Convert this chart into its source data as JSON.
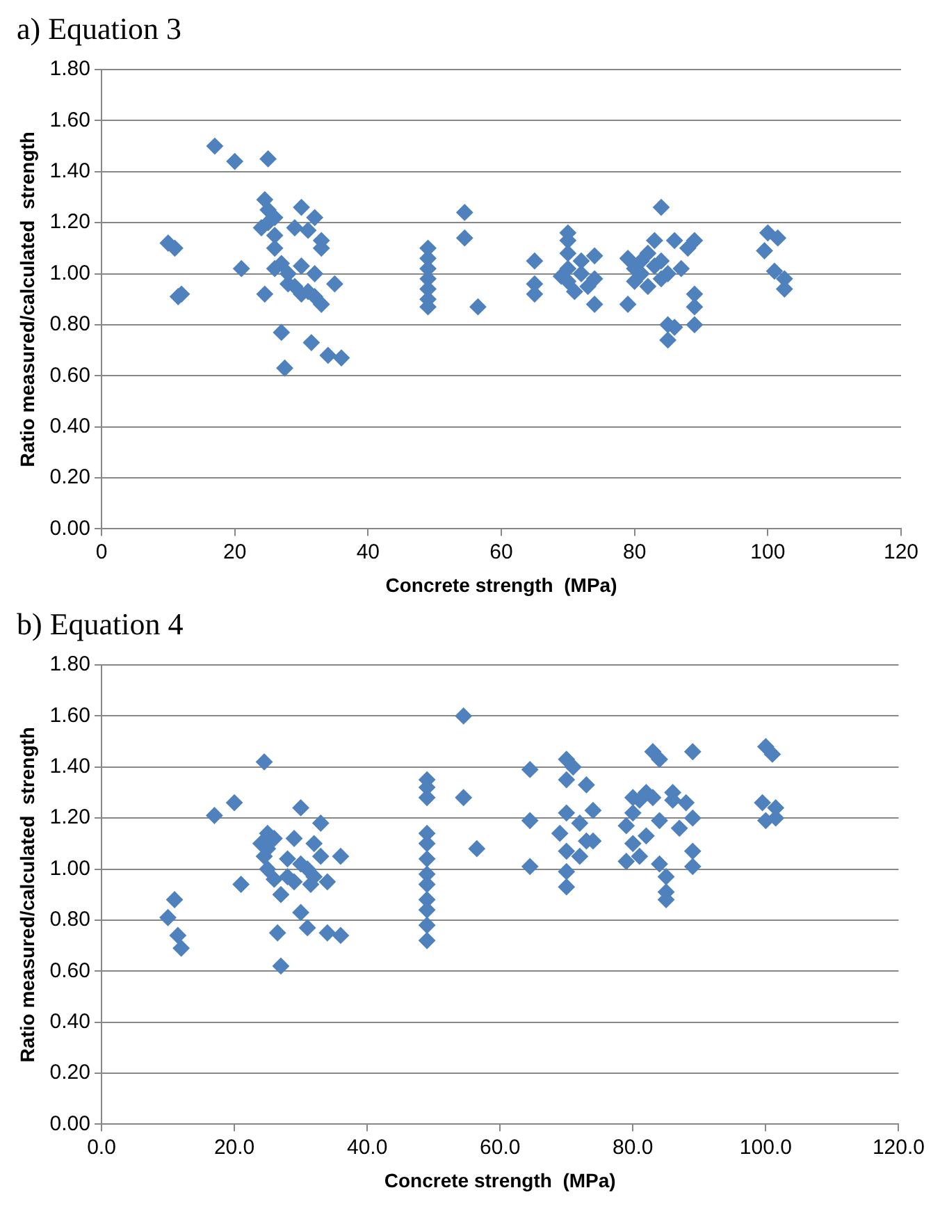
{
  "chart_data": [
    {
      "type": "scatter",
      "title": "a) Equation 3",
      "xlabel": "Concrete strength  (MPa)",
      "ylabel": "Ratio measured/calculated  strength",
      "marker": "diamond",
      "grid": "y",
      "legend": false,
      "xlim": [
        0,
        120
      ],
      "xticks": [
        0,
        20,
        40,
        60,
        80,
        100,
        120
      ],
      "ylim": [
        0,
        1.8
      ],
      "yticks": [
        {
          "value": 0,
          "label": "0.00"
        },
        {
          "value": 0.2,
          "label": "0.20"
        },
        {
          "value": 0.4,
          "label": "0.40"
        },
        {
          "value": 0.6,
          "label": "0.60"
        },
        {
          "value": 0.8,
          "label": "0.80"
        },
        {
          "value": 1,
          "label": "1.00"
        },
        {
          "value": 1.2,
          "label": "1.20"
        },
        {
          "value": 1.4,
          "label": "1.40"
        },
        {
          "value": 1.6,
          "label": "1.60"
        },
        {
          "value": 1.8,
          "label": "1.80"
        }
      ],
      "series": [
        {
          "color": "#4f81bd",
          "x": [
            10,
            11,
            11.5,
            12,
            17,
            20,
            21,
            24,
            24.5,
            24.5,
            25,
            25,
            25,
            26,
            26,
            26,
            26,
            27,
            27,
            27.5,
            28,
            28,
            29,
            29,
            30,
            30,
            30,
            31,
            31,
            31.5,
            32,
            32,
            32,
            33,
            33,
            33,
            34,
            35,
            36,
            49,
            49,
            49,
            49,
            49,
            49,
            49,
            54.5,
            54.5,
            56.5,
            65,
            65,
            65,
            69,
            70,
            70,
            70,
            70,
            70,
            71,
            72,
            72,
            73,
            74,
            74,
            74,
            79,
            79,
            80,
            80,
            81,
            81,
            82,
            82,
            83,
            83,
            84,
            84,
            84,
            85,
            85,
            85,
            86,
            86,
            87,
            88,
            89,
            89,
            89,
            89,
            99.5,
            100,
            101,
            101.5,
            102.5,
            102.5
          ],
          "values": [
            1.12,
            1.1,
            0.91,
            0.92,
            1.5,
            1.44,
            1.02,
            1.18,
            1.29,
            0.92,
            1.45,
            1.25,
            1.2,
            1.15,
            1.22,
            1.1,
            1.02,
            0.77,
            1.04,
            0.63,
            0.96,
            1.0,
            0.95,
            1.18,
            1.03,
            0.92,
            1.26,
            1.17,
            0.93,
            0.73,
            1.22,
            1.0,
            0.91,
            1.1,
            0.88,
            1.13,
            0.68,
            0.96,
            0.67,
            1.1,
            1.06,
            1.02,
            0.98,
            0.94,
            0.9,
            0.87,
            1.24,
            1.14,
            0.87,
            1.05,
            0.96,
            0.92,
            0.99,
            1.16,
            1.13,
            1.08,
            1.02,
            0.97,
            0.93,
            1.05,
            1.0,
            0.95,
            1.07,
            0.88,
            0.98,
            1.06,
            0.88,
            1.02,
            0.97,
            1.05,
            1.0,
            0.95,
            1.08,
            1.03,
            1.13,
            1.26,
            1.05,
            0.98,
            0.8,
            0.74,
            1.0,
            1.13,
            0.79,
            1.02,
            1.1,
            1.13,
            0.92,
            0.87,
            0.8,
            1.09,
            1.16,
            1.01,
            1.14,
            0.98,
            0.94
          ]
        }
      ]
    },
    {
      "type": "scatter",
      "title": "b) Equation 4",
      "xlabel": "Concrete strength  (MPa)",
      "ylabel": "Ratio measured/calculated  strength",
      "marker": "diamond",
      "grid": "y",
      "legend": false,
      "xlim": [
        0,
        120
      ],
      "xticks": [
        {
          "value": 0,
          "label": "0.0"
        },
        {
          "value": 20,
          "label": "20.0"
        },
        {
          "value": 40,
          "label": "40.0"
        },
        {
          "value": 60,
          "label": "60.0"
        },
        {
          "value": 80,
          "label": "80.0"
        },
        {
          "value": 100,
          "label": "100.0"
        },
        {
          "value": 120,
          "label": "120.0"
        }
      ],
      "ylim": [
        0,
        1.8
      ],
      "yticks": [
        {
          "value": 0,
          "label": "0.00"
        },
        {
          "value": 0.2,
          "label": "0.20"
        },
        {
          "value": 0.4,
          "label": "0.40"
        },
        {
          "value": 0.6,
          "label": "0.60"
        },
        {
          "value": 0.8,
          "label": "0.80"
        },
        {
          "value": 1,
          "label": "1.00"
        },
        {
          "value": 1.2,
          "label": "1.20"
        },
        {
          "value": 1.4,
          "label": "1.40"
        },
        {
          "value": 1.6,
          "label": "1.60"
        },
        {
          "value": 1.8,
          "label": "1.80"
        }
      ],
      "series": [
        {
          "color": "#4f81bd",
          "x": [
            10,
            11,
            11.5,
            12,
            17,
            20,
            21,
            24,
            24.5,
            24.5,
            25,
            25,
            25,
            26,
            26,
            26.5,
            27,
            27,
            28,
            28,
            29,
            29,
            30,
            30,
            30,
            31,
            31,
            31.5,
            32,
            32,
            33,
            33,
            34,
            34,
            36,
            36,
            49,
            49,
            49,
            49,
            49,
            49,
            49,
            49,
            49,
            49,
            49,
            49,
            54.5,
            54.5,
            56.5,
            64.5,
            64.5,
            64.5,
            69,
            70,
            70,
            70,
            70,
            70,
            70,
            71,
            72,
            72,
            73,
            73,
            74,
            74,
            79,
            79,
            80,
            80,
            80,
            81,
            81,
            82,
            82,
            83,
            83,
            84,
            84,
            84,
            85,
            85,
            85,
            86,
            86,
            87,
            88,
            89,
            89,
            89,
            89,
            99.5,
            100,
            100,
            101,
            101.5,
            101.5
          ],
          "values": [
            0.81,
            0.88,
            0.74,
            0.69,
            1.21,
            1.26,
            0.94,
            1.1,
            1.42,
            1.05,
            1.14,
            1.08,
            1.0,
            1.12,
            0.96,
            0.75,
            0.9,
            0.62,
            0.97,
            1.04,
            0.95,
            1.12,
            1.24,
            1.02,
            0.83,
            1.0,
            0.77,
            0.94,
            1.1,
            0.97,
            1.05,
            1.18,
            0.75,
            0.95,
            0.74,
            1.05,
            1.35,
            1.32,
            1.28,
            1.14,
            1.1,
            1.04,
            0.98,
            0.94,
            0.88,
            0.84,
            0.78,
            0.72,
            1.6,
            1.28,
            1.08,
            1.39,
            1.19,
            1.01,
            1.14,
            1.43,
            1.35,
            1.22,
            1.07,
            0.99,
            0.93,
            1.4,
            1.18,
            1.05,
            1.11,
            1.33,
            1.23,
            1.11,
            1.17,
            1.03,
            1.28,
            1.22,
            1.1,
            1.27,
            1.05,
            1.3,
            1.13,
            1.46,
            1.28,
            1.43,
            1.19,
            1.02,
            0.91,
            0.88,
            0.97,
            1.3,
            1.27,
            1.16,
            1.26,
            1.46,
            1.2,
            1.07,
            1.01,
            1.26,
            1.48,
            1.19,
            1.45,
            1.24,
            1.2
          ]
        }
      ]
    }
  ]
}
